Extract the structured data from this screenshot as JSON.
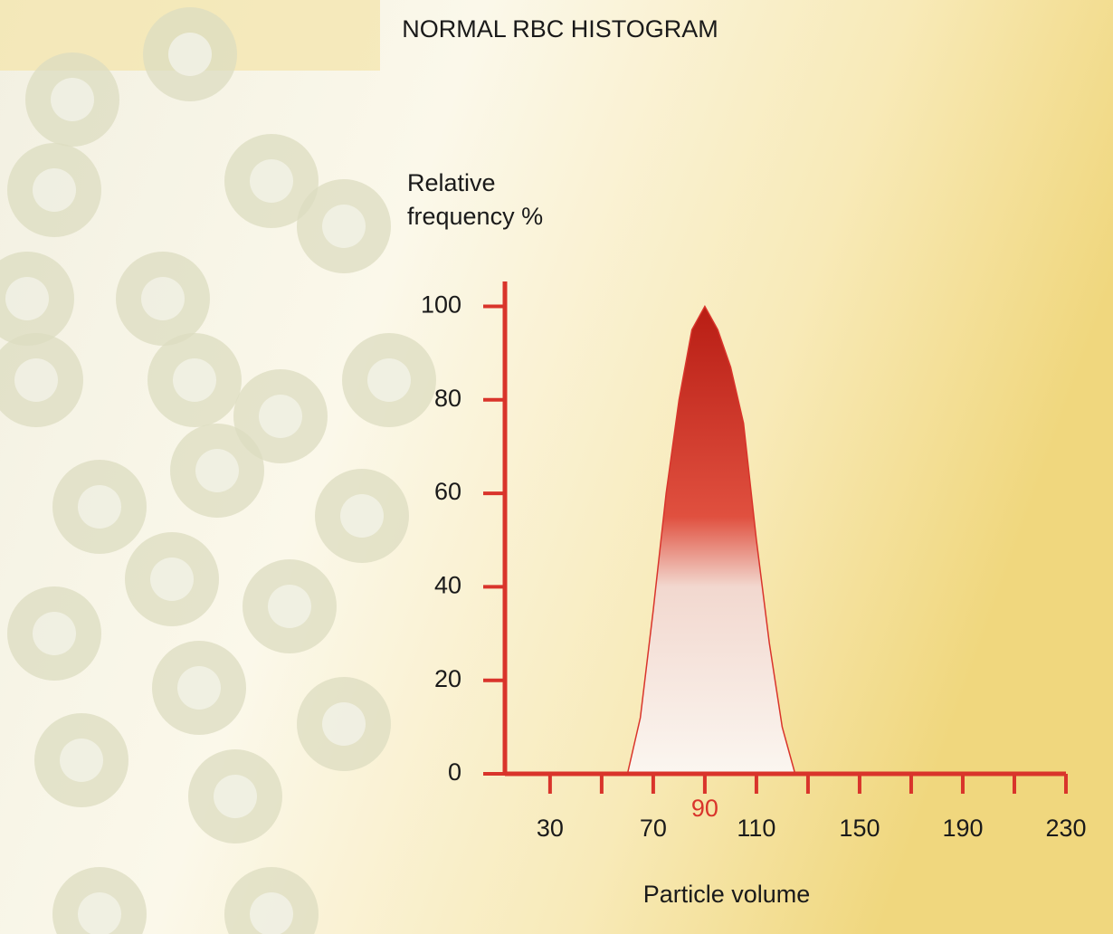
{
  "chart_data": {
    "type": "area",
    "title": "NORMAL RBC HISTOGRAM",
    "y_label": "Relative frequency %",
    "x_label": "Particle volume",
    "x": [
      60,
      65,
      70,
      75,
      80,
      85,
      90,
      95,
      100,
      105,
      110,
      115,
      120,
      125
    ],
    "series": [
      {
        "color": "#d9342b",
        "values": [
          0,
          12,
          35,
          60,
          80,
          95,
          100,
          95,
          87,
          75,
          50,
          28,
          10,
          0
        ]
      }
    ],
    "peak_volume": 90,
    "xlim": [
      12.5,
      230
    ],
    "ylim": [
      0,
      103
    ],
    "xticks": [
      30,
      70,
      110,
      150,
      190,
      230
    ],
    "xminorticks": [
      50,
      90,
      130,
      170,
      210
    ],
    "yticks": [
      0,
      20,
      40,
      60,
      80,
      100
    ],
    "axis_color": "#d9342b"
  }
}
